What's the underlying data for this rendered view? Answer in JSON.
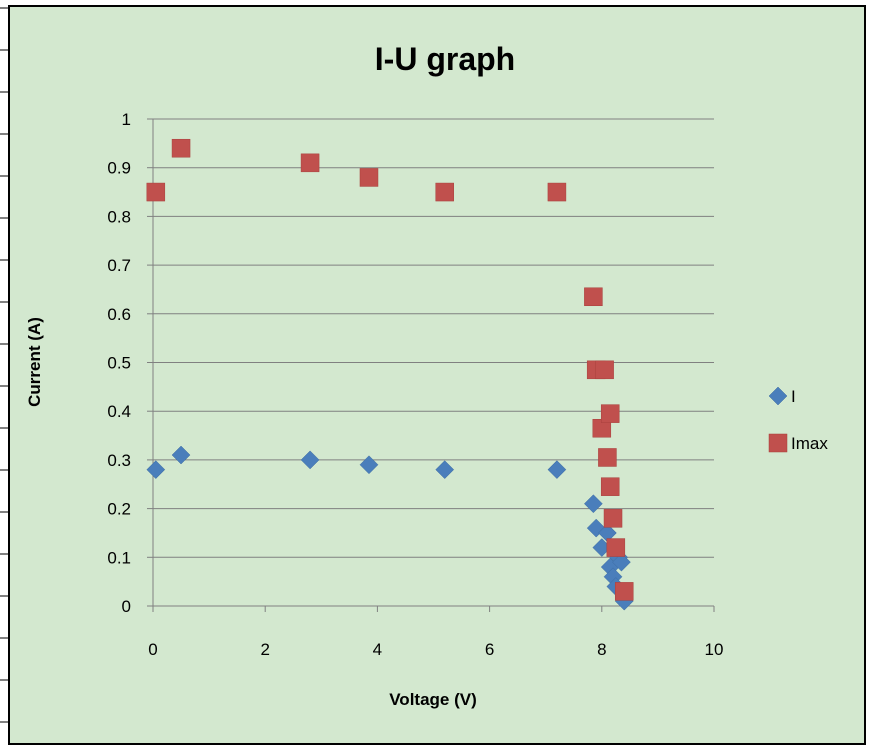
{
  "chart_data": {
    "type": "scatter",
    "title": "I-U graph",
    "xlabel": "Voltage (V)",
    "ylabel": "Current (A)",
    "xlim": [
      0,
      10
    ],
    "ylim": [
      0,
      1
    ],
    "x_ticks": [
      "0",
      "2",
      "4",
      "6",
      "8",
      "10"
    ],
    "y_ticks": [
      "0",
      "0.1",
      "0.2",
      "0.3",
      "0.4",
      "0.5",
      "0.6",
      "0.7",
      "0.8",
      "0.9",
      "1"
    ],
    "grid": "horizontal",
    "legend_position": "right",
    "background_color": "#d3e8cf",
    "series": [
      {
        "name": "I",
        "marker": "diamond",
        "color": "#4a7ebb",
        "points": [
          [
            0.05,
            0.28
          ],
          [
            0.5,
            0.31
          ],
          [
            2.8,
            0.3
          ],
          [
            3.85,
            0.29
          ],
          [
            5.2,
            0.28
          ],
          [
            7.2,
            0.28
          ],
          [
            7.85,
            0.21
          ],
          [
            7.9,
            0.16
          ],
          [
            8.0,
            0.12
          ],
          [
            8.1,
            0.15
          ],
          [
            8.15,
            0.08
          ],
          [
            8.2,
            0.06
          ],
          [
            8.25,
            0.04
          ],
          [
            8.3,
            0.1
          ],
          [
            8.35,
            0.09
          ],
          [
            8.4,
            0.01
          ]
        ]
      },
      {
        "name": "Imax",
        "marker": "square",
        "color": "#c0504d",
        "points": [
          [
            0.05,
            0.85
          ],
          [
            0.5,
            0.94
          ],
          [
            2.8,
            0.91
          ],
          [
            3.85,
            0.88
          ],
          [
            5.2,
            0.85
          ],
          [
            7.2,
            0.85
          ],
          [
            7.85,
            0.635
          ],
          [
            7.9,
            0.485
          ],
          [
            8.05,
            0.485
          ],
          [
            8.0,
            0.365
          ],
          [
            8.15,
            0.395
          ],
          [
            8.1,
            0.305
          ],
          [
            8.15,
            0.245
          ],
          [
            8.2,
            0.18
          ],
          [
            8.25,
            0.12
          ],
          [
            8.4,
            0.03
          ]
        ]
      }
    ]
  }
}
